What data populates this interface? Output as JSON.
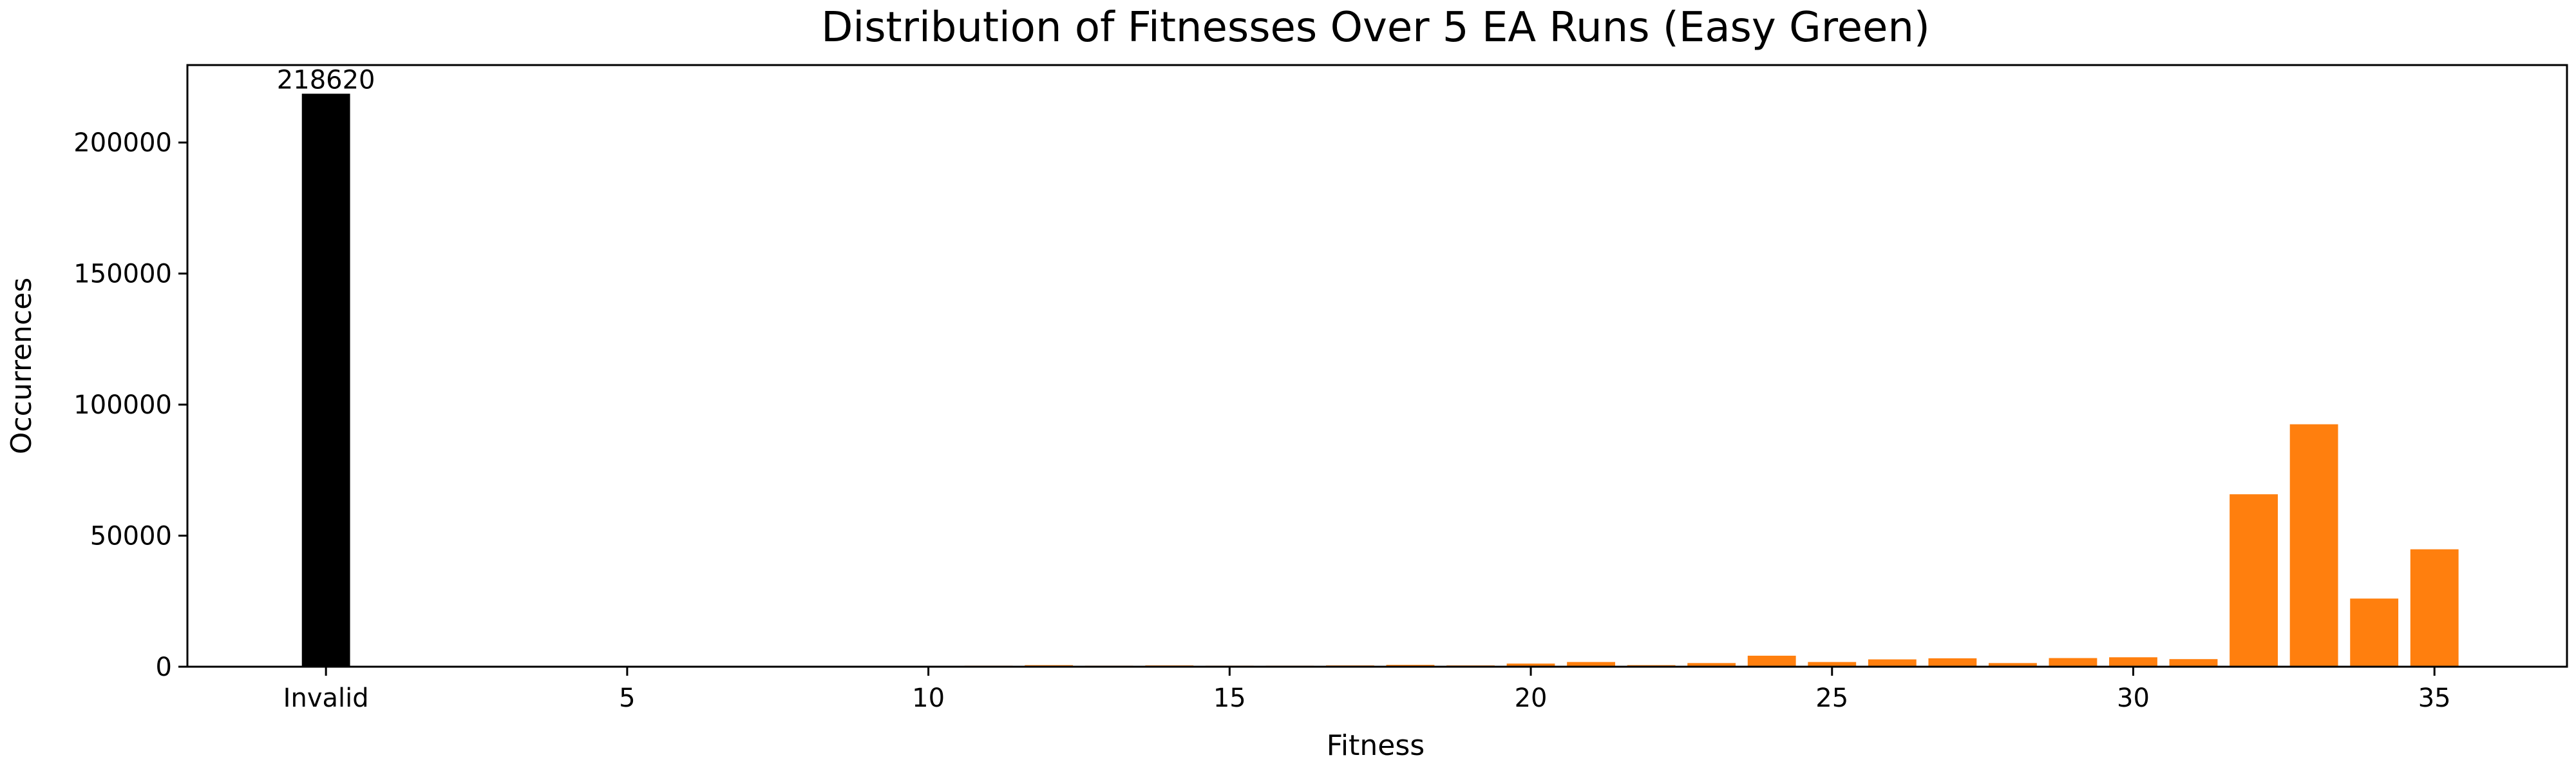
{
  "chart_data": {
    "type": "bar",
    "title": "Distribution of Fitnesses Over 5 EA Runs (Easy Green)",
    "xlabel": "Fitness",
    "ylabel": "Occurrences",
    "xlim": [
      -2.3,
      37.2
    ],
    "ylim": [
      0,
      229551
    ],
    "xticks": [
      {
        "value": 0,
        "label": "Invalid"
      },
      {
        "value": 5,
        "label": "5"
      },
      {
        "value": 10,
        "label": "10"
      },
      {
        "value": 15,
        "label": "15"
      },
      {
        "value": 20,
        "label": "20"
      },
      {
        "value": 25,
        "label": "25"
      },
      {
        "value": 30,
        "label": "30"
      },
      {
        "value": 35,
        "label": "35"
      }
    ],
    "yticks": [
      {
        "value": 0,
        "label": "0"
      },
      {
        "value": 50000,
        "label": "50000"
      },
      {
        "value": 100000,
        "label": "100000"
      },
      {
        "value": 150000,
        "label": "150000"
      },
      {
        "value": 200000,
        "label": "200000"
      }
    ],
    "invalid_bar": {
      "x": 0,
      "value": 218620,
      "label": "218620",
      "color": "#000000"
    },
    "series": [
      {
        "name": "Fitness",
        "color": "#ff7f0e",
        "x": [
          5,
          6,
          7,
          8,
          9,
          10,
          11,
          12,
          13,
          14,
          15,
          16,
          17,
          18,
          19,
          20,
          21,
          22,
          23,
          24,
          25,
          26,
          27,
          28,
          29,
          30,
          31,
          32,
          33,
          34,
          35
        ],
        "values": [
          200,
          300,
          300,
          300,
          200,
          300,
          400,
          600,
          400,
          500,
          400,
          400,
          500,
          700,
          500,
          1200,
          1800,
          600,
          1400,
          4200,
          1800,
          2800,
          3200,
          1400,
          3300,
          3600,
          2900,
          65800,
          92500,
          26000,
          44800
        ]
      }
    ],
    "grid": false
  }
}
